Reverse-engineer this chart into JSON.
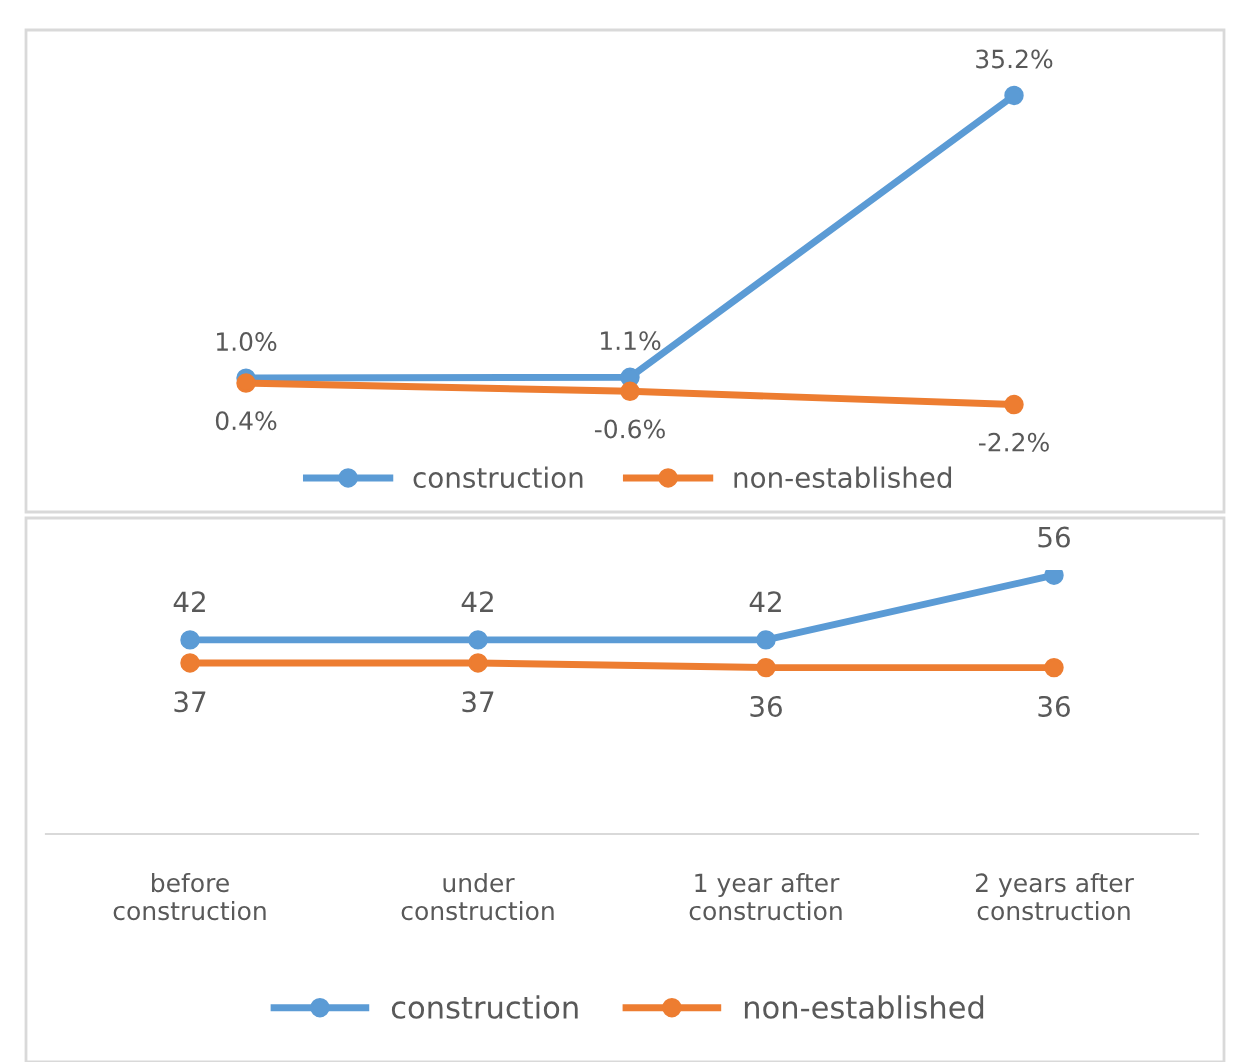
{
  "chart_data": [
    {
      "type": "line",
      "categories": [
        null,
        null,
        null
      ],
      "legend": "bottom",
      "marker": "circle",
      "line_style": "solid",
      "grid": false,
      "tick_labels": false,
      "series": [
        {
          "name": "construction",
          "color": "#5b9bd5",
          "values": [
            1.0,
            1.1,
            35.2
          ],
          "value_labels": [
            "1.0%",
            "1.1%",
            "35.2%"
          ]
        },
        {
          "name": "non-established",
          "color": "#ed7d31",
          "values": [
            0.4,
            -0.6,
            -2.2
          ],
          "value_labels": [
            "0.4%",
            "-0.6%",
            "-2.2%"
          ]
        }
      ]
    },
    {
      "type": "line",
      "categories": [
        "before\nconstruction",
        "under\nconstruction",
        "1 year after\nconstruction",
        "2 years after\nconstruction"
      ],
      "legend": "bottom",
      "marker": "circle",
      "line_style": "solid",
      "grid": false,
      "tick_labels": "x",
      "data_labels": true,
      "series": [
        {
          "name": "construction",
          "color": "#5b9bd5",
          "values": [
            42,
            42,
            42,
            56
          ]
        },
        {
          "name": "non-established",
          "color": "#ed7d31",
          "values": [
            37,
            37,
            36,
            36
          ]
        }
      ]
    }
  ]
}
